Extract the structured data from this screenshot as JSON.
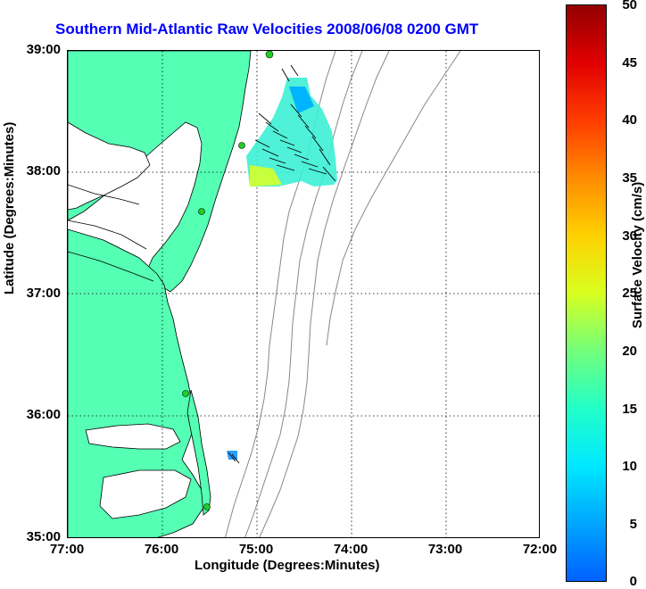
{
  "title": "Southern Mid-Atlantic Raw Velocities 2008/06/08 0200 GMT",
  "axes": {
    "xlabel": "Longitude (Degrees:Minutes)",
    "ylabel": "Latitude (Degrees:Minutes)",
    "xticks": [
      "77:00",
      "76:00",
      "75:00",
      "74:00",
      "73:00",
      "72:00"
    ],
    "yticks": [
      "39:00",
      "38:00",
      "37:00",
      "36:00",
      "35:00"
    ],
    "xlim_deg_west": [
      77,
      72
    ],
    "ylim_deg_north": [
      35,
      39
    ],
    "grid": "dotted"
  },
  "colorbar": {
    "label": "Surface Velocity (cm/s)",
    "ticks": [
      "50",
      "45",
      "40",
      "35",
      "30",
      "25",
      "20",
      "15",
      "10",
      "5",
      "0"
    ],
    "range": [
      0,
      50
    ],
    "colormap": "jet"
  },
  "colors": {
    "land": "#55ffb4",
    "coast_line": "#000000",
    "bathymetry": "#888888",
    "title": "#0000ff",
    "station": "#20d020"
  },
  "map": {
    "stations_lonlat": [
      [
        74.85,
        38.97
      ],
      [
        75.1,
        38.22
      ],
      [
        75.5,
        37.7
      ],
      [
        75.7,
        36.18
      ],
      [
        75.47,
        35.26
      ]
    ]
  }
}
